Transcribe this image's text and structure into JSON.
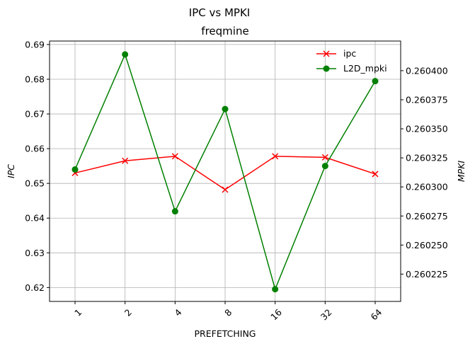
{
  "chart_data": {
    "type": "line",
    "suptitle": "IPC vs MPKI",
    "title": "freqmine",
    "xlabel": "PREFETCHING",
    "ylabel_left": "IPC",
    "ylabel_right": "MPKI",
    "categories": [
      "1",
      "2",
      "4",
      "8",
      "16",
      "32",
      "64"
    ],
    "grid": true,
    "legend_position": "top-right",
    "y_left": {
      "ylim": [
        0.616,
        0.691
      ],
      "ticks": [
        0.62,
        0.63,
        0.64,
        0.65,
        0.66,
        0.67,
        0.68,
        0.69
      ],
      "tick_labels": [
        "0.62",
        "0.63",
        "0.64",
        "0.65",
        "0.66",
        "0.67",
        "0.68",
        "0.69"
      ]
    },
    "y_right": {
      "ylim": [
        0.2602015,
        0.2604255
      ],
      "ticks": [
        0.260225,
        0.26025,
        0.260275,
        0.2603,
        0.260325,
        0.26035,
        0.260375,
        0.2604
      ],
      "tick_labels": [
        "0.260225",
        "0.260250",
        "0.260275",
        "0.260300",
        "0.260325",
        "0.260350",
        "0.260375",
        "0.260400"
      ]
    },
    "series": [
      {
        "name": "ipc",
        "axis": "left",
        "color": "#ff0000",
        "marker": "x",
        "values": [
          0.653,
          0.6565,
          0.6578,
          0.6482,
          0.6578,
          0.6575,
          0.6527
        ]
      },
      {
        "name": "L2D_mpki",
        "axis": "right",
        "color": "#008000",
        "marker": "o",
        "values": [
          0.260315,
          0.260414,
          0.260279,
          0.260367,
          0.260212,
          0.260318,
          0.260391
        ]
      }
    ]
  }
}
